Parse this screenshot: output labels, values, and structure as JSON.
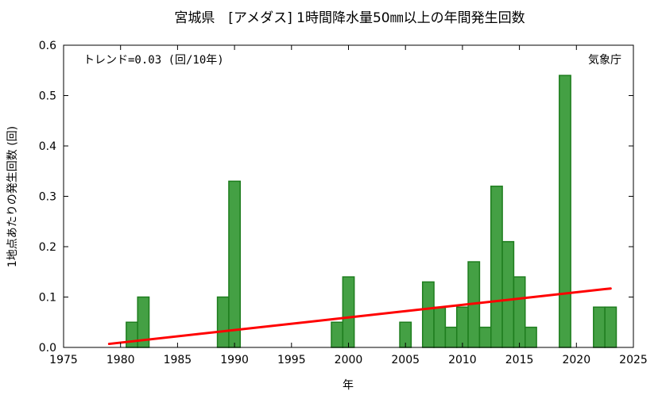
{
  "chart_data": {
    "type": "bar",
    "title": "宮城県　[アメダス] 1時間降水量50㎜以上の年間発生回数",
    "xlabel": "年",
    "ylabel": "1地点あたりの発生回数 (回)",
    "xlim": [
      1975,
      2025
    ],
    "ylim": [
      0,
      0.6
    ],
    "x_ticks": [
      1975,
      1980,
      1985,
      1990,
      1995,
      2000,
      2005,
      2010,
      2015,
      2020,
      2025
    ],
    "y_ticks": [
      0.0,
      0.1,
      0.2,
      0.3,
      0.4,
      0.5,
      0.6
    ],
    "y_tick_labels": [
      "0.0",
      "0.1",
      "0.2",
      "0.3",
      "0.4",
      "0.5",
      "0.6"
    ],
    "grid": false,
    "series": [
      {
        "x": [
          1981,
          1982,
          1989,
          1990,
          1999,
          2000,
          2005,
          2007,
          2008,
          2009,
          2010,
          2011,
          2012,
          2013,
          2014,
          2015,
          2016,
          2019,
          2022,
          2023
        ],
        "values": [
          0.05,
          0.1,
          0.1,
          0.33,
          0.05,
          0.14,
          0.05,
          0.13,
          0.08,
          0.04,
          0.08,
          0.17,
          0.04,
          0.32,
          0.21,
          0.14,
          0.04,
          0.54,
          0.08,
          0.08
        ],
        "color": "#44a044",
        "edge_color": "#1e7d1e"
      }
    ],
    "trend": {
      "x": [
        1979,
        2023
      ],
      "y": [
        0.007,
        0.117
      ],
      "color": "#ff0000"
    },
    "annotation": "トレンド=0.03 (回/10年)",
    "credit": "気象庁"
  }
}
